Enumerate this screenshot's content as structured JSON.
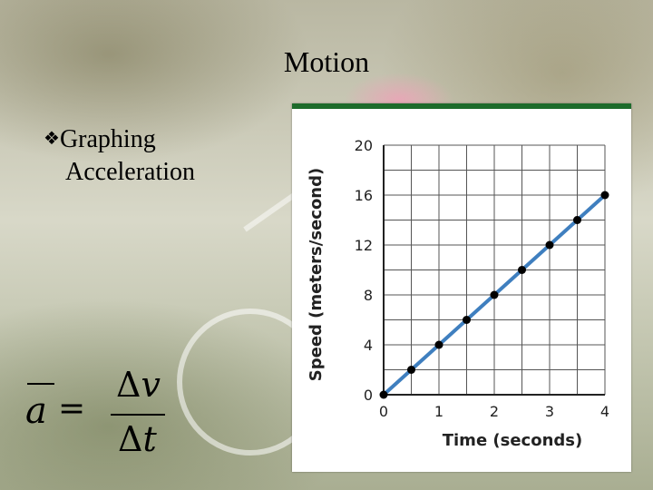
{
  "slide": {
    "title": "Motion",
    "bullet_mark": "❖",
    "bullet_line1": "Graphing",
    "bullet_line2": "Acceleration",
    "formula": {
      "lhs": "a",
      "equals": "=",
      "numerator_delta": "Δ",
      "numerator_var": "v",
      "denominator_delta": "Δ",
      "denominator_var": "t"
    }
  },
  "chart_data": {
    "type": "line",
    "xlabel": "Time (seconds)",
    "ylabel": "Speed (meters/second)",
    "xlim": [
      0,
      4
    ],
    "ylim": [
      0,
      20
    ],
    "xticks": [
      0,
      1,
      2,
      3,
      4
    ],
    "yticks": [
      0,
      4,
      8,
      12,
      16,
      20
    ],
    "grid": true,
    "line_color": "#3f7fbf",
    "point_color": "#000000",
    "panel_border_color": "#1d6b2b",
    "series": [
      {
        "x": [
          0,
          0.5,
          1,
          1.5,
          2,
          2.5,
          3,
          3.5,
          4
        ],
        "y": [
          0,
          2,
          4,
          6,
          8,
          10,
          12,
          14,
          16
        ]
      }
    ]
  }
}
